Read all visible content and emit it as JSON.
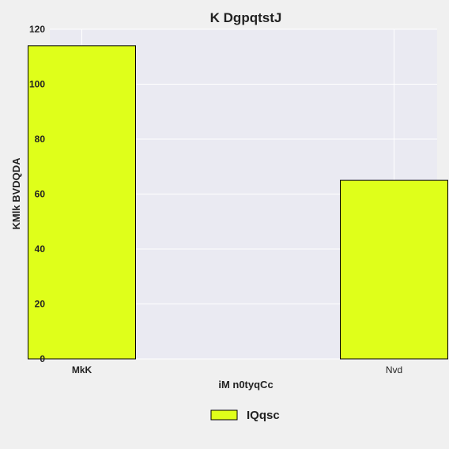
{
  "chart_data": {
    "type": "bar",
    "title": "K DgpqtstJ",
    "xlabel": "iM n0tyqCc",
    "ylabel": "KMlk BVDQDA",
    "categories": [
      "MkK",
      "Nvd"
    ],
    "series": [
      {
        "name": "IQqsc",
        "values": [
          114,
          65
        ],
        "color": "#dfff1a"
      }
    ],
    "ylim": [
      0,
      120
    ],
    "yticks": [
      0,
      20,
      40,
      60,
      80,
      100,
      120
    ],
    "grid": true,
    "legend_position": "bottom-center",
    "plot_background": "#eaeaf2",
    "grid_color": "#ffffff"
  }
}
